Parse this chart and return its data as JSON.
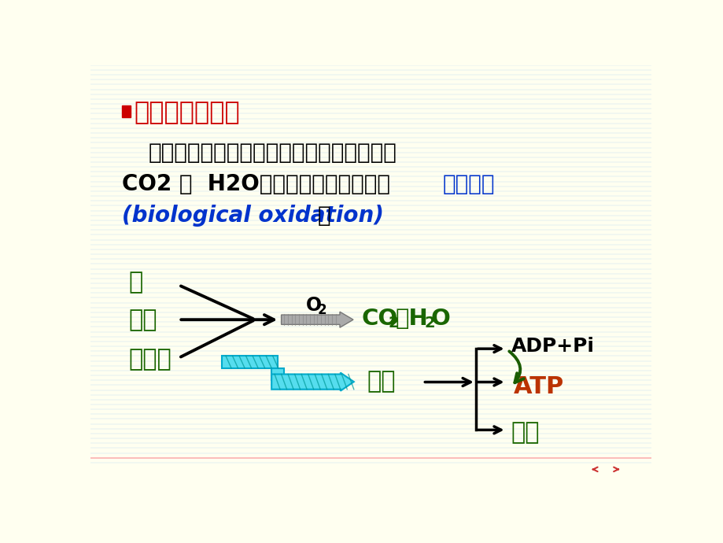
{
  "bg_color": "#fffff0",
  "horiz_line_color": "#b8d8e8",
  "horiz_line_color2": "#e8c0c0",
  "bottom_line_color": "#ff9999",
  "title_square_color": "#cc0000",
  "title_text": "生物氧化的概念",
  "title_color": "#cc0000",
  "body1": "营养物质在生物体内经氧化分解，最终生成",
  "body2_black": "CO2 和  H2O，并释放能量的过程称",
  "body2_blue": "生物氧化",
  "body3_blue": "(biological oxidation)",
  "body3_black": "。",
  "label_tang": "糖",
  "label_zhifang": "脂肪",
  "label_danbai": "蛋白质",
  "label_co2": "CO",
  "label_co2_sub": "2",
  "label_he": "和H",
  "label_h2o_sub": "2",
  "label_o": "O",
  "label_o2": "O",
  "label_o2_sub": "2",
  "label_energy": "能量",
  "label_adppi": "ADP+Pi",
  "label_atp": "ATP",
  "label_re": "热能",
  "green_color": "#1a6600",
  "dark_green": "#1a5c00",
  "atp_color": "#bb3300",
  "black_color": "#000000",
  "blue_color": "#0033cc",
  "cyan_fill": "#55ddee",
  "cyan_edge": "#00aacc",
  "gray_fill": "#aaaaaa",
  "gray_edge": "#777777"
}
